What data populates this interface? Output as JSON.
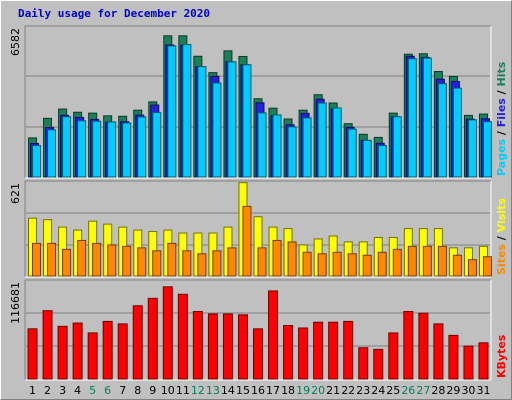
{
  "title": "Daily usage for December 2020",
  "colors": {
    "hits": "#1b7f59",
    "files": "#2222dd",
    "pages": "#00ccff",
    "visits": "#ffff00",
    "sites": "#ff8800",
    "kbytes": "#ff0000",
    "weekend_label": "#007f5f",
    "weekday_label": "#000000",
    "panel_bg": "#c0c0c0"
  },
  "chart_data": [
    {
      "type": "bar",
      "panel": "pages-files-hits",
      "scale_label": "6582",
      "ylim": [
        0,
        6582
      ],
      "legend": [
        {
          "name": "Pages",
          "color": "#00ccff"
        },
        {
          "name": "Files",
          "color": "#2222dd"
        },
        {
          "name": "Hits",
          "color": "#1b7f59"
        }
      ],
      "categories": [
        "1",
        "2",
        "3",
        "4",
        "5",
        "6",
        "7",
        "8",
        "9",
        "10",
        "11",
        "12",
        "13",
        "14",
        "15",
        "16",
        "17",
        "18",
        "19",
        "20",
        "21",
        "22",
        "23",
        "24",
        "25",
        "26",
        "27",
        "28",
        "29",
        "30",
        "31"
      ],
      "weekend_days": [
        "5",
        "6",
        "12",
        "13",
        "19",
        "20",
        "26",
        "27"
      ],
      "series": [
        {
          "name": "Hits",
          "values": [
            1740,
            2610,
            3020,
            2880,
            2840,
            2720,
            2700,
            2970,
            3340,
            6280,
            6280,
            5370,
            4640,
            5610,
            5360,
            3480,
            3060,
            2580,
            2970,
            3660,
            3290,
            2370,
            1900,
            1760,
            2840,
            5460,
            5480,
            4690,
            4470,
            2740,
            2800
          ]
        },
        {
          "name": "Files",
          "values": [
            1490,
            2200,
            2740,
            2650,
            2560,
            2440,
            2460,
            2750,
            3200,
            5870,
            5860,
            4910,
            4470,
            5120,
            4990,
            3300,
            2720,
            2320,
            2830,
            3460,
            3020,
            2210,
            1630,
            1500,
            2680,
            5370,
            5320,
            4350,
            4250,
            2570,
            2590
          ]
        },
        {
          "name": "Pages",
          "values": [
            1400,
            2100,
            2680,
            2500,
            2480,
            2450,
            2400,
            2670,
            2870,
            5830,
            5890,
            4910,
            4180,
            5120,
            4990,
            2850,
            2760,
            2230,
            2630,
            3290,
            3070,
            2130,
            1630,
            1400,
            2680,
            5260,
            5290,
            4150,
            3950,
            2540,
            2460
          ]
        }
      ]
    },
    {
      "type": "bar",
      "panel": "visits-sites",
      "scale_label": "621",
      "ylim": [
        0,
        621
      ],
      "legend": [
        {
          "name": "Sites",
          "color": "#ff8800"
        },
        {
          "name": "Visits",
          "color": "#ffff00"
        }
      ],
      "categories": [
        "1",
        "2",
        "3",
        "4",
        "5",
        "6",
        "7",
        "8",
        "9",
        "10",
        "11",
        "12",
        "13",
        "14",
        "15",
        "16",
        "17",
        "18",
        "19",
        "20",
        "21",
        "22",
        "23",
        "24",
        "25",
        "26",
        "27",
        "28",
        "29",
        "30",
        "31"
      ],
      "series": [
        {
          "name": "Visits",
          "values": [
            390,
            380,
            330,
            310,
            370,
            350,
            330,
            310,
            300,
            310,
            290,
            290,
            290,
            330,
            630,
            400,
            330,
            320,
            210,
            250,
            270,
            230,
            230,
            260,
            260,
            320,
            320,
            320,
            190,
            190,
            200
          ]
        },
        {
          "name": "Sites",
          "values": [
            220,
            220,
            180,
            240,
            220,
            210,
            200,
            190,
            170,
            220,
            170,
            150,
            170,
            190,
            470,
            190,
            240,
            230,
            160,
            150,
            160,
            150,
            140,
            160,
            180,
            200,
            200,
            200,
            140,
            110,
            130
          ]
        }
      ]
    },
    {
      "type": "bar",
      "panel": "kbytes",
      "scale_label": "116681",
      "ylim": [
        0,
        116681
      ],
      "legend": [
        {
          "name": "KBytes",
          "color": "#ff0000"
        }
      ],
      "categories": [
        "1",
        "2",
        "3",
        "4",
        "5",
        "6",
        "7",
        "8",
        "9",
        "10",
        "11",
        "12",
        "13",
        "14",
        "15",
        "16",
        "17",
        "18",
        "19",
        "20",
        "21",
        "22",
        "23",
        "24",
        "25",
        "26",
        "27",
        "28",
        "29",
        "30",
        "31"
      ],
      "series": [
        {
          "name": "KBytes",
          "values": [
            61000,
            83000,
            64000,
            68000,
            56000,
            70000,
            67000,
            89000,
            98000,
            112000,
            103000,
            82000,
            79000,
            79000,
            78000,
            61000,
            107000,
            65000,
            62000,
            69000,
            69000,
            70000,
            38000,
            36000,
            56000,
            82000,
            80000,
            67000,
            53000,
            40000,
            44000
          ]
        }
      ]
    }
  ]
}
